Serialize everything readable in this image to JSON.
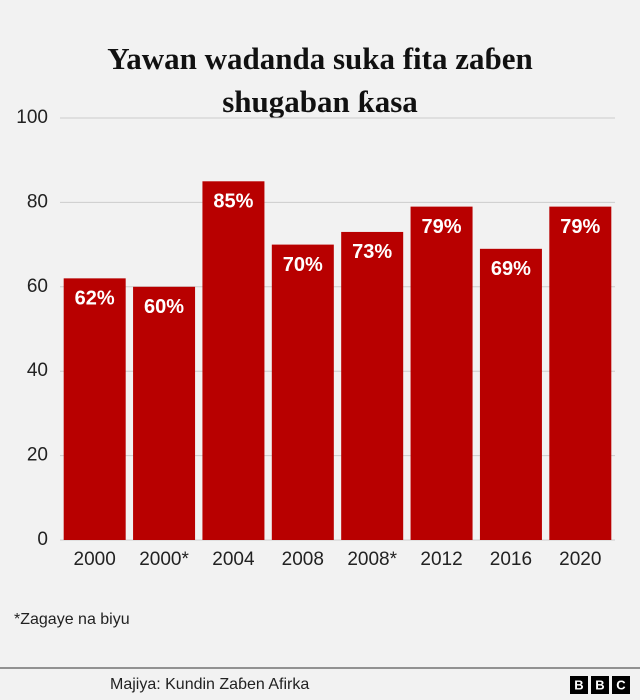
{
  "chart_data": {
    "type": "bar",
    "title": "Yawan wadanda suka fita zaɓen shugaban ƙasa",
    "categories": [
      "2000",
      "2000*",
      "2004",
      "2008",
      "2008*",
      "2012",
      "2016",
      "2020"
    ],
    "values": [
      62,
      60,
      85,
      70,
      73,
      79,
      69,
      79
    ],
    "value_labels": [
      "62%",
      "60%",
      "85%",
      "70%",
      "73%",
      "79%",
      "69%",
      "79%"
    ],
    "color": "#b80000",
    "ylim": [
      0,
      100
    ],
    "yticks": [
      0,
      20,
      40,
      60,
      80,
      100
    ],
    "grid": true,
    "note": "*Zagaye na biyu",
    "source": "Majiya: Kundin Zaɓen Afirka",
    "logo": [
      "B",
      "B",
      "C"
    ]
  }
}
